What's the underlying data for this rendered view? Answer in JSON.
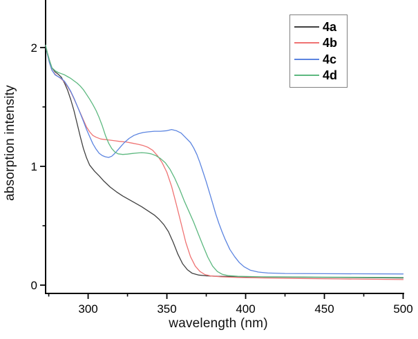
{
  "figure": {
    "background": "#ffffff",
    "axis_color": "#000000"
  },
  "chart_data": {
    "type": "line",
    "title": "",
    "xlabel": "wavelength (nm)",
    "ylabel": "absorption intensity",
    "grid": false,
    "legend_position": "top-right",
    "x_axis": {
      "min": 273,
      "max": 500,
      "major_ticks": [
        300,
        350,
        400,
        450,
        500
      ],
      "minor_ticks": [
        275,
        325,
        375,
        425,
        475
      ]
    },
    "y_axis": {
      "min": -0.07,
      "max": 2.4,
      "major_ticks": [
        0,
        1,
        2
      ],
      "minor_ticks": [
        0.5,
        1.5
      ]
    },
    "series": [
      {
        "name": "4a",
        "color": "#3f3f3f",
        "points": [
          [
            273,
            2.02
          ],
          [
            274,
            1.96
          ],
          [
            275.5,
            1.89
          ],
          [
            277,
            1.83
          ],
          [
            279,
            1.795
          ],
          [
            281,
            1.775
          ],
          [
            283,
            1.75
          ],
          [
            285,
            1.7
          ],
          [
            287,
            1.64
          ],
          [
            289,
            1.56
          ],
          [
            291,
            1.47
          ],
          [
            293,
            1.36
          ],
          [
            295,
            1.25
          ],
          [
            297,
            1.15
          ],
          [
            299,
            1.07
          ],
          [
            301,
            1.01
          ],
          [
            304,
            0.96
          ],
          [
            307,
            0.92
          ],
          [
            310,
            0.875
          ],
          [
            314,
            0.825
          ],
          [
            318,
            0.785
          ],
          [
            322,
            0.75
          ],
          [
            326,
            0.72
          ],
          [
            330,
            0.69
          ],
          [
            334,
            0.66
          ],
          [
            338,
            0.625
          ],
          [
            342,
            0.59
          ],
          [
            345,
            0.555
          ],
          [
            348,
            0.51
          ],
          [
            351,
            0.45
          ],
          [
            354,
            0.36
          ],
          [
            357,
            0.26
          ],
          [
            360,
            0.18
          ],
          [
            363,
            0.13
          ],
          [
            366,
            0.1
          ],
          [
            370,
            0.085
          ],
          [
            375,
            0.078
          ],
          [
            382,
            0.074
          ],
          [
            395,
            0.071
          ],
          [
            420,
            0.068
          ],
          [
            460,
            0.064
          ],
          [
            500,
            0.06
          ]
        ]
      },
      {
        "name": "4b",
        "color": "#ef7272",
        "points": [
          [
            273,
            2.02
          ],
          [
            274,
            1.95
          ],
          [
            275.5,
            1.87
          ],
          [
            277,
            1.81
          ],
          [
            279,
            1.775
          ],
          [
            281,
            1.755
          ],
          [
            283,
            1.735
          ],
          [
            285,
            1.71
          ],
          [
            287,
            1.67
          ],
          [
            289,
            1.625
          ],
          [
            291,
            1.57
          ],
          [
            293,
            1.51
          ],
          [
            295,
            1.45
          ],
          [
            297,
            1.39
          ],
          [
            299,
            1.33
          ],
          [
            301,
            1.29
          ],
          [
            303,
            1.26
          ],
          [
            305,
            1.245
          ],
          [
            308,
            1.23
          ],
          [
            311,
            1.225
          ],
          [
            314,
            1.22
          ],
          [
            317,
            1.215
          ],
          [
            320,
            1.21
          ],
          [
            324,
            1.205
          ],
          [
            328,
            1.195
          ],
          [
            332,
            1.185
          ],
          [
            335,
            1.175
          ],
          [
            338,
            1.16
          ],
          [
            341,
            1.135
          ],
          [
            344,
            1.09
          ],
          [
            347,
            1.03
          ],
          [
            350,
            0.95
          ],
          [
            353,
            0.83
          ],
          [
            356,
            0.68
          ],
          [
            359,
            0.52
          ],
          [
            362,
            0.36
          ],
          [
            365,
            0.24
          ],
          [
            368,
            0.16
          ],
          [
            371,
            0.115
          ],
          [
            374,
            0.09
          ],
          [
            378,
            0.077
          ],
          [
            384,
            0.07
          ],
          [
            395,
            0.064
          ],
          [
            420,
            0.058
          ],
          [
            460,
            0.052
          ],
          [
            500,
            0.047
          ]
        ]
      },
      {
        "name": "4c",
        "color": "#5b84e0",
        "points": [
          [
            273,
            2.02
          ],
          [
            274,
            1.95
          ],
          [
            275.5,
            1.87
          ],
          [
            277,
            1.81
          ],
          [
            279,
            1.77
          ],
          [
            281,
            1.755
          ],
          [
            283,
            1.74
          ],
          [
            285,
            1.715
          ],
          [
            287,
            1.675
          ],
          [
            289,
            1.63
          ],
          [
            291,
            1.575
          ],
          [
            293,
            1.51
          ],
          [
            295,
            1.445
          ],
          [
            297,
            1.38
          ],
          [
            299,
            1.31
          ],
          [
            301,
            1.25
          ],
          [
            303,
            1.19
          ],
          [
            305,
            1.145
          ],
          [
            307,
            1.11
          ],
          [
            309,
            1.09
          ],
          [
            311,
            1.08
          ],
          [
            313,
            1.075
          ],
          [
            315,
            1.085
          ],
          [
            317,
            1.11
          ],
          [
            319,
            1.14
          ],
          [
            321,
            1.17
          ],
          [
            323,
            1.2
          ],
          [
            326,
            1.235
          ],
          [
            329,
            1.26
          ],
          [
            332,
            1.275
          ],
          [
            335,
            1.285
          ],
          [
            338,
            1.29
          ],
          [
            342,
            1.295
          ],
          [
            346,
            1.295
          ],
          [
            350,
            1.3
          ],
          [
            353,
            1.31
          ],
          [
            356,
            1.3
          ],
          [
            359,
            1.28
          ],
          [
            362,
            1.24
          ],
          [
            365,
            1.2
          ],
          [
            367,
            1.155
          ],
          [
            369,
            1.1
          ],
          [
            371,
            1.03
          ],
          [
            373,
            0.95
          ],
          [
            375,
            0.87
          ],
          [
            377,
            0.78
          ],
          [
            379,
            0.69
          ],
          [
            381,
            0.6
          ],
          [
            383,
            0.52
          ],
          [
            385,
            0.45
          ],
          [
            387,
            0.385
          ],
          [
            390,
            0.3
          ],
          [
            393,
            0.24
          ],
          [
            396,
            0.19
          ],
          [
            399,
            0.155
          ],
          [
            403,
            0.125
          ],
          [
            408,
            0.11
          ],
          [
            414,
            0.102
          ],
          [
            425,
            0.098
          ],
          [
            450,
            0.096
          ],
          [
            500,
            0.094
          ]
        ]
      },
      {
        "name": "4d",
        "color": "#5cb87f",
        "points": [
          [
            273,
            2.02
          ],
          [
            274,
            1.96
          ],
          [
            275.5,
            1.89
          ],
          [
            277,
            1.83
          ],
          [
            279,
            1.805
          ],
          [
            281,
            1.79
          ],
          [
            283,
            1.78
          ],
          [
            285,
            1.77
          ],
          [
            287,
            1.755
          ],
          [
            289,
            1.74
          ],
          [
            291,
            1.72
          ],
          [
            293,
            1.7
          ],
          [
            295,
            1.675
          ],
          [
            297,
            1.645
          ],
          [
            299,
            1.605
          ],
          [
            301,
            1.565
          ],
          [
            303,
            1.52
          ],
          [
            305,
            1.47
          ],
          [
            307,
            1.41
          ],
          [
            309,
            1.34
          ],
          [
            311,
            1.26
          ],
          [
            313,
            1.195
          ],
          [
            315,
            1.15
          ],
          [
            317,
            1.12
          ],
          [
            319,
            1.105
          ],
          [
            322,
            1.1
          ],
          [
            325,
            1.103
          ],
          [
            328,
            1.108
          ],
          [
            331,
            1.112
          ],
          [
            334,
            1.115
          ],
          [
            337,
            1.112
          ],
          [
            340,
            1.105
          ],
          [
            343,
            1.09
          ],
          [
            346,
            1.065
          ],
          [
            349,
            1.03
          ],
          [
            352,
            0.975
          ],
          [
            355,
            0.9
          ],
          [
            358,
            0.81
          ],
          [
            361,
            0.71
          ],
          [
            364,
            0.62
          ],
          [
            367,
            0.53
          ],
          [
            370,
            0.43
          ],
          [
            373,
            0.33
          ],
          [
            376,
            0.235
          ],
          [
            379,
            0.16
          ],
          [
            382,
            0.115
          ],
          [
            385,
            0.092
          ],
          [
            389,
            0.08
          ],
          [
            395,
            0.074
          ],
          [
            410,
            0.07
          ],
          [
            450,
            0.067
          ],
          [
            500,
            0.064
          ]
        ]
      }
    ]
  }
}
